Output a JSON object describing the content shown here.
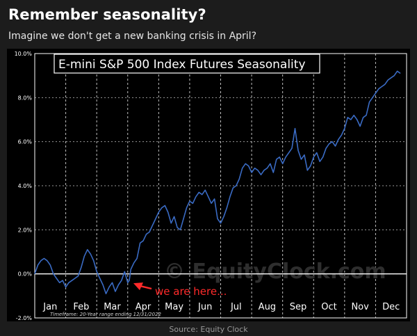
{
  "post": {
    "title": "Remember seasonality?",
    "subtitle": "Imagine we don't get a new banking crisis in April?",
    "source": "Source: Equity Clock"
  },
  "colors": {
    "background": "#1c1c1c",
    "plot_background": "#000000",
    "line": "#3a6bc4",
    "grid": "#ffffff",
    "annotation": "#ff2a2a"
  },
  "chart_data": {
    "type": "line",
    "title": "E-mini S&P 500 Index Futures Seasonality",
    "timeframe": "Timeframe:  20-Year range ending 12/31/2022",
    "watermark": "© EquityClock.com",
    "annotation": "we are here...",
    "annotation_target": {
      "x": 3.05,
      "y": -0.3
    },
    "xlabel": "",
    "ylabel": "",
    "x_ticks": [
      "Jan",
      "Feb",
      "Mar",
      "Apr",
      "May",
      "Jun",
      "Jul",
      "Aug",
      "Sep",
      "Oct",
      "Nov",
      "Dec"
    ],
    "y_ticks": [
      "10.0%",
      "8.0%",
      "6.0%",
      "4.0%",
      "2.0%",
      "0.0%",
      "-2.0%"
    ],
    "xlim": [
      0,
      12
    ],
    "ylim": [
      -2.0,
      10.0
    ],
    "grid": true,
    "x_unit": "months since Jan 1",
    "points": [
      [
        0.0,
        0.0
      ],
      [
        0.1,
        0.4
      ],
      [
        0.2,
        0.6
      ],
      [
        0.3,
        0.7
      ],
      [
        0.4,
        0.6
      ],
      [
        0.5,
        0.4
      ],
      [
        0.6,
        0.0
      ],
      [
        0.7,
        -0.2
      ],
      [
        0.8,
        -0.4
      ],
      [
        0.9,
        -0.3
      ],
      [
        1.0,
        -0.6
      ],
      [
        1.1,
        -0.4
      ],
      [
        1.2,
        -0.3
      ],
      [
        1.3,
        -0.2
      ],
      [
        1.4,
        -0.1
      ],
      [
        1.5,
        0.3
      ],
      [
        1.6,
        0.8
      ],
      [
        1.7,
        1.1
      ],
      [
        1.8,
        0.9
      ],
      [
        1.9,
        0.6
      ],
      [
        2.0,
        0.1
      ],
      [
        2.1,
        -0.2
      ],
      [
        2.2,
        -0.5
      ],
      [
        2.3,
        -0.9
      ],
      [
        2.4,
        -0.6
      ],
      [
        2.5,
        -0.4
      ],
      [
        2.6,
        -0.8
      ],
      [
        2.7,
        -0.5
      ],
      [
        2.8,
        -0.3
      ],
      [
        2.9,
        0.1
      ],
      [
        3.0,
        -0.4
      ],
      [
        3.05,
        -0.3
      ],
      [
        3.1,
        0.2
      ],
      [
        3.2,
        0.5
      ],
      [
        3.3,
        0.7
      ],
      [
        3.4,
        1.4
      ],
      [
        3.5,
        1.5
      ],
      [
        3.6,
        1.8
      ],
      [
        3.7,
        1.9
      ],
      [
        3.8,
        2.2
      ],
      [
        3.9,
        2.5
      ],
      [
        4.0,
        2.8
      ],
      [
        4.1,
        3.0
      ],
      [
        4.2,
        3.1
      ],
      [
        4.3,
        2.8
      ],
      [
        4.4,
        2.3
      ],
      [
        4.5,
        2.6
      ],
      [
        4.6,
        2.1
      ],
      [
        4.7,
        2.0
      ],
      [
        4.8,
        2.5
      ],
      [
        4.9,
        3.0
      ],
      [
        5.0,
        3.3
      ],
      [
        5.1,
        3.2
      ],
      [
        5.2,
        3.5
      ],
      [
        5.3,
        3.7
      ],
      [
        5.4,
        3.6
      ],
      [
        5.5,
        3.8
      ],
      [
        5.6,
        3.5
      ],
      [
        5.7,
        3.2
      ],
      [
        5.8,
        3.4
      ],
      [
        5.9,
        2.5
      ],
      [
        6.0,
        2.3
      ],
      [
        6.1,
        2.6
      ],
      [
        6.2,
        3.0
      ],
      [
        6.3,
        3.5
      ],
      [
        6.4,
        3.9
      ],
      [
        6.5,
        4.0
      ],
      [
        6.6,
        4.3
      ],
      [
        6.7,
        4.8
      ],
      [
        6.8,
        5.0
      ],
      [
        6.9,
        4.9
      ],
      [
        7.0,
        4.6
      ],
      [
        7.1,
        4.8
      ],
      [
        7.2,
        4.7
      ],
      [
        7.3,
        4.5
      ],
      [
        7.4,
        4.7
      ],
      [
        7.5,
        4.8
      ],
      [
        7.6,
        5.0
      ],
      [
        7.7,
        4.6
      ],
      [
        7.8,
        5.2
      ],
      [
        7.9,
        5.3
      ],
      [
        8.0,
        5.0
      ],
      [
        8.1,
        5.3
      ],
      [
        8.2,
        5.5
      ],
      [
        8.3,
        5.7
      ],
      [
        8.4,
        6.6
      ],
      [
        8.5,
        5.6
      ],
      [
        8.6,
        5.2
      ],
      [
        8.7,
        5.4
      ],
      [
        8.8,
        4.7
      ],
      [
        8.9,
        4.9
      ],
      [
        9.0,
        5.3
      ],
      [
        9.1,
        5.5
      ],
      [
        9.2,
        5.1
      ],
      [
        9.3,
        5.3
      ],
      [
        9.4,
        5.7
      ],
      [
        9.5,
        5.9
      ],
      [
        9.6,
        6.0
      ],
      [
        9.7,
        5.8
      ],
      [
        9.8,
        6.1
      ],
      [
        9.9,
        6.3
      ],
      [
        10.0,
        6.6
      ],
      [
        10.1,
        7.1
      ],
      [
        10.2,
        7.0
      ],
      [
        10.3,
        7.2
      ],
      [
        10.4,
        7.0
      ],
      [
        10.5,
        6.7
      ],
      [
        10.6,
        7.1
      ],
      [
        10.7,
        7.2
      ],
      [
        10.8,
        7.8
      ],
      [
        10.9,
        8.0
      ],
      [
        11.0,
        8.2
      ],
      [
        11.1,
        8.4
      ],
      [
        11.2,
        8.5
      ],
      [
        11.3,
        8.6
      ],
      [
        11.4,
        8.8
      ],
      [
        11.5,
        8.9
      ],
      [
        11.6,
        9.0
      ],
      [
        11.7,
        9.2
      ],
      [
        11.8,
        9.1
      ]
    ]
  }
}
